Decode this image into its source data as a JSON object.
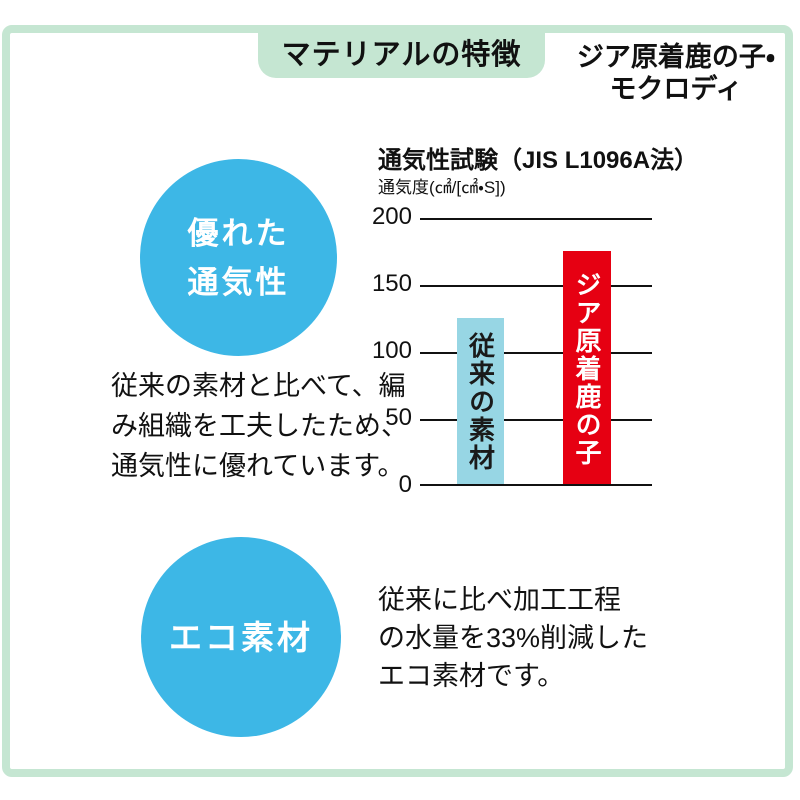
{
  "header": {
    "title": "マテリアルの特徴",
    "product_name_line1": "ジア原着鹿の子・",
    "product_name_line2": "モクロディ"
  },
  "breathability_section": {
    "badge": "優れた\n通気性",
    "description": "従来の素材と比べて、編\nみ組織を工夫したため、\n通気性に優れています。"
  },
  "eco_section": {
    "badge": "エコ素材",
    "description": "従来に比べ加工工程\nの水量を33%削減した\nエコ素材です。"
  },
  "chart_data": {
    "type": "bar",
    "title": "通気性試験（JIS L1096A法）",
    "ylabel": "通気度(㎠/[㎠・S])",
    "categories": [
      "従来の素材",
      "ジア原着鹿の子"
    ],
    "values": [
      125,
      175
    ],
    "bar_colors": [
      "#97d6e4",
      "#e60012"
    ],
    "label_colors": [
      "#1a1a1a",
      "#ffffff"
    ],
    "yticks": [
      0,
      50,
      100,
      150,
      200
    ],
    "ylim": [
      0,
      200
    ],
    "grid": true,
    "legend_position": "none",
    "xlabel": ""
  },
  "colors": {
    "frame_green": "#c5e6d2",
    "badge_blue": "#3db7e6",
    "bar_light_blue": "#97d6e4",
    "bar_red": "#e60012",
    "text_black": "#111111"
  }
}
